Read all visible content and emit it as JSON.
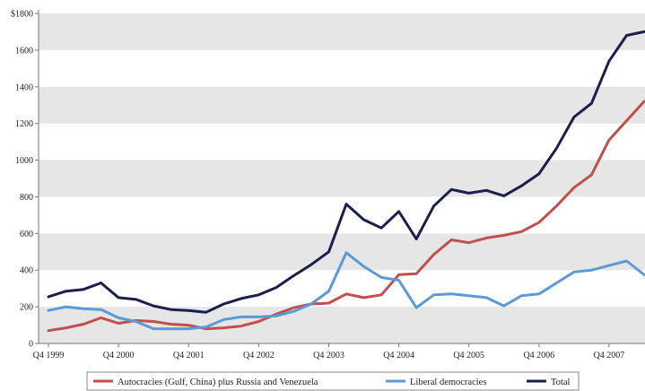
{
  "chart_data": {
    "type": "line",
    "title": "",
    "xlabel": "",
    "ylabel": "",
    "ylim": [
      0,
      1800
    ],
    "y_ticks": [
      "0",
      "200",
      "400",
      "600",
      "800",
      "1000",
      "1200",
      "1400",
      "1600",
      "$1800"
    ],
    "y_tick_values": [
      0,
      200,
      400,
      600,
      800,
      1000,
      1200,
      1400,
      1600,
      1800
    ],
    "x_ticks": [
      "Q4 1999",
      "Q4 2000",
      "Q4 2001",
      "Q4 2002",
      "Q4 2003",
      "Q4 2004",
      "Q4 2005",
      "Q4 2006",
      "Q4 2007"
    ],
    "grid": "alternating horizontal bands",
    "legend_position": "bottom",
    "colors": {
      "band": "#e6e6e6",
      "autocracies": "#c0504d",
      "liberal": "#5b9bd5",
      "total": "#1a1f4e"
    },
    "x": [
      "Q4 1999",
      "Q1 2000",
      "Q2 2000",
      "Q3 2000",
      "Q4 2000",
      "Q1 2001",
      "Q2 2001",
      "Q3 2001",
      "Q4 2001",
      "Q1 2002",
      "Q2 2002",
      "Q3 2002",
      "Q4 2002",
      "Q1 2003",
      "Q2 2003",
      "Q3 2003",
      "Q4 2003",
      "Q1 2004",
      "Q2 2004",
      "Q3 2004",
      "Q4 2004",
      "Q1 2005",
      "Q2 2005",
      "Q3 2005",
      "Q4 2005",
      "Q1 2006",
      "Q2 2006",
      "Q3 2006",
      "Q4 2006",
      "Q1 2007",
      "Q2 2007",
      "Q3 2007",
      "Q4 2007",
      "Q1 2008",
      "Q2 2008"
    ],
    "series": [
      {
        "name": "Autocracies (Gulf, China) plus Russia and Venezuela",
        "color_key": "autocracies",
        "values": [
          70,
          85,
          105,
          140,
          110,
          125,
          120,
          105,
          100,
          80,
          85,
          95,
          120,
          160,
          195,
          215,
          220,
          270,
          250,
          265,
          375,
          380,
          485,
          565,
          550,
          575,
          590,
          610,
          660,
          750,
          850,
          920,
          1110,
          1215,
          1320
        ]
      },
      {
        "name": "Liberal democracies",
        "color_key": "liberal",
        "values": [
          180,
          200,
          190,
          185,
          140,
          120,
          80,
          80,
          80,
          90,
          130,
          145,
          145,
          150,
          175,
          215,
          285,
          495,
          420,
          360,
          345,
          195,
          265,
          270,
          260,
          250,
          205,
          260,
          270,
          330,
          390,
          400,
          425,
          450,
          375
        ]
      },
      {
        "name": "Total",
        "color_key": "total",
        "values": [
          255,
          285,
          295,
          330,
          250,
          240,
          205,
          185,
          180,
          170,
          215,
          245,
          265,
          305,
          370,
          430,
          500,
          760,
          675,
          630,
          720,
          570,
          750,
          840,
          820,
          835,
          805,
          860,
          925,
          1065,
          1235,
          1310,
          1540,
          1680,
          1700
        ]
      }
    ]
  }
}
